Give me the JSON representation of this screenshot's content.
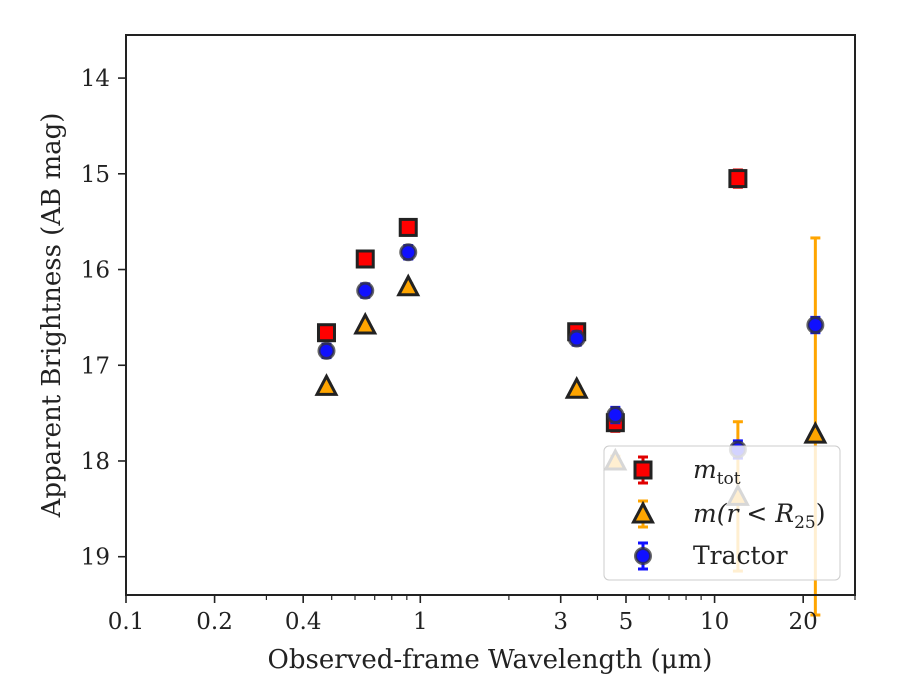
{
  "chart_data": {
    "type": "scatter",
    "xlabel": "Observed-frame Wavelength (μm)",
    "ylabel": "Apparent Brightness (AB mag)",
    "xscale": "log",
    "xlim": [
      0.1,
      30
    ],
    "ylim": [
      19.4,
      13.55
    ],
    "yinverted": true,
    "x_tick_labels": [
      {
        "value": 0.1,
        "label": "0.1"
      },
      {
        "value": 0.2,
        "label": "0.2"
      },
      {
        "value": 0.4,
        "label": "0.4"
      },
      {
        "value": 1,
        "label": "1"
      },
      {
        "value": 3,
        "label": "3"
      },
      {
        "value": 5,
        "label": "5"
      },
      {
        "value": 10,
        "label": "10"
      },
      {
        "value": 20,
        "label": "20"
      }
    ],
    "x_minor_ticks": [
      0.3,
      0.5,
      0.6,
      0.7,
      0.8,
      0.9,
      2,
      4,
      6,
      7,
      8,
      9,
      30
    ],
    "y_ticks": [
      14,
      15,
      16,
      17,
      18,
      19
    ],
    "grid": false,
    "legend_position": "bottom-right",
    "series": [
      {
        "name_main": "m",
        "name_sub": "tot",
        "marker": "square",
        "color": "#ff0000",
        "errcolor": "#e00000",
        "edge": "#222222",
        "points": [
          {
            "x": 0.48,
            "y": 16.66,
            "err": 0.07
          },
          {
            "x": 0.65,
            "y": 15.89,
            "err": 0.07
          },
          {
            "x": 0.91,
            "y": 15.56,
            "err": 0.08
          },
          {
            "x": 3.4,
            "y": 16.65,
            "err": 0.07
          },
          {
            "x": 4.6,
            "y": 17.6,
            "err": 0.09
          },
          {
            "x": 12,
            "y": 15.05,
            "err": 0.09
          }
        ]
      },
      {
        "name_main": "m(r < R",
        "name_sub": "25",
        "name_close": ")",
        "marker": "triangle",
        "color": "#ffa500",
        "errcolor": "#ffa500",
        "edge": "#222222",
        "points": [
          {
            "x": 0.48,
            "y": 17.22,
            "err": 0.03
          },
          {
            "x": 0.65,
            "y": 16.58,
            "err": 0.03
          },
          {
            "x": 0.91,
            "y": 16.18,
            "err": 0.03
          },
          {
            "x": 3.4,
            "y": 17.25,
            "err": 0.03
          },
          {
            "x": 4.6,
            "y": 18.0,
            "err": 0.05
          },
          {
            "x": 12,
            "y": 18.37,
            "err": 0.78
          },
          {
            "x": 22,
            "y": 17.72,
            "err": 2.05
          }
        ]
      },
      {
        "name_main": "Tractor",
        "marker": "circle",
        "color": "#1010ff",
        "errcolor": "#1010ff",
        "edge": "#333333",
        "points": [
          {
            "x": 0.48,
            "y": 16.85,
            "err": 0.07
          },
          {
            "x": 0.65,
            "y": 16.22,
            "err": 0.07
          },
          {
            "x": 0.91,
            "y": 15.82,
            "err": 0.07
          },
          {
            "x": 3.4,
            "y": 16.72,
            "err": 0.07
          },
          {
            "x": 4.6,
            "y": 17.52,
            "err": 0.08
          },
          {
            "x": 12,
            "y": 17.88,
            "err": 0.09
          },
          {
            "x": 22,
            "y": 16.58,
            "err": 0.08
          }
        ]
      }
    ]
  }
}
